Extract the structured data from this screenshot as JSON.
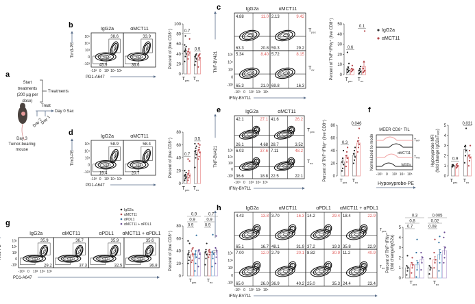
{
  "panel_a": {
    "label": "a",
    "start": [
      "Start",
      "treatments",
      "(200 µg per",
      "dose)"
    ],
    "treatments": "Treatments",
    "treat": "Treat",
    "sac": "Day 0 Sac",
    "day2": "Day 2",
    "day1": "Day 1",
    "mouse": [
      "Day 3",
      "Tumor-bearing",
      "mouse"
    ]
  },
  "axis_ticks": {
    "y": [
      "10⁵",
      "10⁴",
      "10³",
      "0",
      "-10³"
    ],
    "x": [
      "-10³",
      "0",
      "10³",
      "10⁴",
      "10⁵"
    ]
  },
  "flow": [
    {
      "id": "b",
      "label": "b",
      "type": "gate",
      "samples": [
        "IgG2a",
        "αMCT11"
      ],
      "ylabel": "Tim3-PE",
      "xlabel": "PD1-A647",
      "gates": [
        [
          "38.6",
          "45.9"
        ],
        [
          "33.9",
          "36.6"
        ]
      ]
    },
    {
      "id": "d",
      "label": "d",
      "type": "gate",
      "samples": [
        "IgG2a",
        "αMCT11"
      ],
      "ylabel": "Tim3-PE",
      "xlabel": "PD1-A647",
      "gates": [
        [
          "58.9",
          "19.4"
        ],
        [
          "58.4",
          "20.7"
        ]
      ]
    },
    {
      "id": "g",
      "label": "g",
      "type": "gate",
      "samples": [
        "IgG2a",
        "αMCT11",
        "αPDL1",
        "αMCT11 + αPDL1"
      ],
      "ylabel": "Tim3-PE",
      "xlabel": "PD1-A647",
      "gates": [
        [
          "35.9",
          "29.2"
        ],
        [
          "36.7",
          "37.3"
        ],
        [
          "35.9",
          "32.5"
        ],
        [
          "35.6",
          "36.8"
        ]
      ]
    },
    {
      "id": "c",
      "label": "c",
      "type": "quad",
      "samples": [
        "IgG2a",
        "αMCT11"
      ],
      "ylabel": "TNF-BV421",
      "xlabel": "IFNγ-BV711",
      "rows": [
        {
          "name": {
            "t": "T",
            "sub": "pex"
          },
          "quads": [
            [
              "4.88",
              "11.0",
              "63.3",
              "20.8"
            ],
            [
              "2.13",
              "9.42",
              "59.3",
              "29.2"
            ]
          ]
        },
        {
          "name": {
            "t": "T",
            "sub": "ex"
          },
          "quads": [
            [
              "5.34",
              "8.40",
              "65.3",
              "21.0"
            ],
            [
              "5.72",
              "8.15",
              "69.8",
              "16.3"
            ]
          ]
        }
      ]
    },
    {
      "id": "e",
      "label": "e",
      "type": "quad",
      "samples": [
        "IgG2a",
        "αMCT11"
      ],
      "ylabel": "TNF-BV421",
      "xlabel": "IFNγ-BV711",
      "rows": [
        {
          "name": {
            "t": "T",
            "sub": "pex"
          },
          "quads": [
            [
              "42.1",
              "27.1",
              "26.1",
              "4.68"
            ],
            [
              "41.6",
              "26.2",
              "28.7",
              "3.52"
            ]
          ]
        },
        {
          "name": {
            "t": "T",
            "sub": "ex"
          },
          "quads": [
            [
              "6.03",
              "37.6",
              "36.6",
              "18.8"
            ],
            [
              "7.11",
              "48.2",
              "22.5",
              "22.1"
            ]
          ]
        }
      ]
    },
    {
      "id": "h",
      "label": "h",
      "type": "quad",
      "samples": [
        "IgG2a",
        "αMCT11",
        "αPDL1",
        "αMCT11 + αPDL1"
      ],
      "ylabel": "TNF-BV421",
      "xlabel": "IFNγ-BV711",
      "rows": [
        {
          "name": {
            "t": "T",
            "sub": "pex"
          },
          "quads": [
            [
              "4.43",
              "13.8",
              "65.1",
              "16.7"
            ],
            [
              "3.70",
              "16.3",
              "48.1",
              "31.9"
            ],
            [
              "14.2",
              "29.4",
              "37.2",
              "19.3"
            ],
            [
              "18.4",
              "22.9",
              "35.8",
              "22.9"
            ]
          ]
        },
        {
          "name": {
            "t": "T",
            "sub": "ex"
          },
          "quads": [
            [
              "7.00",
              "12.0",
              "65.0",
              "26.0"
            ],
            [
              "2.79",
              "20.1",
              "36.9",
              "40.2"
            ],
            [
              "8.82",
              "30.9",
              "25.0",
              "35.3"
            ],
            [
              "11.2",
              "40.9",
              "24.4",
              "23.4"
            ]
          ]
        }
      ]
    }
  ],
  "histogram_f": {
    "label": "f",
    "title": "MEER CD8⁺ TIL",
    "ylabel": "Normalized to mode",
    "xlabel": "Hypoxyprobe-PE",
    "curve_labels": [
      "Tₑₓₕ",
      "αMCT11",
      "Tₚₑₓ",
      "IgG2a"
    ],
    "colors": {
      "IgG2a": "#222222",
      "αMCT11": "#f2a0a0"
    }
  },
  "legend_c": [
    {
      "name": "IgG2a",
      "color": "#333333"
    },
    {
      "name": "αMCT11",
      "color": "#b5474b"
    }
  ],
  "legend_g": [
    {
      "name": "IgG2a",
      "color": "#111111"
    },
    {
      "name": "αMCT11",
      "color": "#b5474b"
    },
    {
      "name": "αPDL1",
      "color": "#2e6e9e"
    },
    {
      "name": "αMCT11 + αPDL1",
      "color": "#6a4c93"
    }
  ],
  "chart_data": [
    {
      "id": "b",
      "type": "bar",
      "ylabel": [
        "Percent of (live CD8⁺)"
      ],
      "ylim": [
        0,
        100
      ],
      "yticks": [
        "0",
        "20",
        "40",
        "60",
        "80",
        "100"
      ],
      "groups": [
        {
          "t": "T",
          "sub": "pex"
        },
        {
          "t": "T",
          "sub": "ex"
        }
      ],
      "series": [
        {
          "name": "IgG2a",
          "means": [
            47,
            33
          ],
          "sem": [
            5,
            3
          ],
          "points": [
            [
              25,
              35,
              40,
              45,
              48,
              55,
              58,
              76
            ],
            [
              18,
              25,
              30,
              35,
              38,
              40
            ]
          ]
        },
        {
          "name": "αMCT11",
          "means": [
            45,
            33
          ],
          "sem": [
            5,
            4
          ],
          "points": [
            [
              30,
              38,
              42,
              45,
              50,
              70
            ],
            [
              14,
              28,
              32,
              36,
              38,
              40
            ]
          ]
        }
      ],
      "pvalues": [
        [
          "0.7"
        ],
        [
          "0.9"
        ]
      ]
    },
    {
      "id": "d",
      "type": "bar",
      "ylabel": [
        "Percent of (live CD8⁺)"
      ],
      "ylim": [
        0,
        80
      ],
      "yticks": [
        "0",
        "20",
        "40",
        "60",
        "80"
      ],
      "groups": [
        {
          "t": "T",
          "sub": "pex"
        },
        {
          "t": "T",
          "sub": "ex"
        }
      ],
      "series": [
        {
          "name": "IgG2a",
          "means": [
            12,
            48
          ],
          "sem": [
            2,
            4
          ],
          "points": [
            [
              5,
              8,
              10,
              12,
              14,
              17,
              20
            ],
            [
              25,
              40,
              45,
              50,
              55,
              58,
              62
            ]
          ]
        },
        {
          "name": "αMCT11",
          "means": [
            15,
            50
          ],
          "sem": [
            3,
            3
          ],
          "points": [
            [
              5,
              9,
              12,
              15,
              20,
              35,
              38
            ],
            [
              38,
              42,
              48,
              52,
              56,
              60,
              62
            ]
          ]
        }
      ],
      "pvalues": [
        [
          "0.7"
        ],
        [
          "0.5"
        ]
      ]
    },
    {
      "id": "g",
      "type": "bar",
      "ylabel": [
        "Percent of (live CD8⁺)"
      ],
      "ylim": [
        0,
        80
      ],
      "yticks": [
        "0",
        "20",
        "40",
        "60",
        "80"
      ],
      "groups": [
        {
          "t": "T",
          "sub": "pex"
        },
        {
          "t": "T",
          "sub": "ex"
        }
      ],
      "series": [
        {
          "name": "IgG2a",
          "means": [
            34,
            36
          ],
          "sem": [
            4,
            3
          ],
          "points": [
            [
              20,
              25,
              30,
              35,
              40,
              52,
              56
            ],
            [
              18,
              28,
              34,
              38,
              42,
              52
            ]
          ]
        },
        {
          "name": "αMCT11",
          "means": [
            34,
            38
          ],
          "sem": [
            3,
            2
          ],
          "points": [
            [
              22,
              25,
              35,
              40,
              43,
              45
            ],
            [
              30,
              34,
              38,
              40,
              42
            ]
          ]
        },
        {
          "name": "αPDL1",
          "means": [
            34,
            35
          ],
          "sem": [
            6,
            5
          ],
          "points": [
            [
              8,
              20,
              30,
              35,
              40,
              65
            ],
            [
              15,
              28,
              35,
              38,
              66
            ]
          ]
        },
        {
          "name": "αMCT11 + αPDL1",
          "means": [
            38,
            38
          ],
          "sem": [
            4,
            5
          ],
          "points": [
            [
              15,
              28,
              35,
              40,
              41
            ],
            [
              20,
              30,
              40,
              45,
              64
            ]
          ]
        }
      ],
      "pvalues": [
        [
          "0.9",
          "0.9",
          "0.9"
        ],
        [
          "0.7",
          "0.9",
          "0.9"
        ]
      ]
    },
    {
      "id": "c",
      "type": "bar",
      "ylabel": [
        "Percent of TNF⁺IFNγ⁺ (live CD8⁺)"
      ],
      "ylim": [
        0,
        50
      ],
      "yticks": [
        "0",
        "10",
        "20",
        "30",
        "40",
        "50"
      ],
      "groups": [
        {
          "t": "T",
          "sub": "pex"
        },
        {
          "t": "T",
          "sub": "ex"
        }
      ],
      "series": [
        {
          "name": "IgG2a",
          "means": [
            6,
            4
          ],
          "sem": [
            2,
            1
          ],
          "points": [
            [
              2,
              3,
              4,
              5,
              7,
              11,
              22
            ],
            [
              1,
              2,
              3,
              4,
              6,
              8
            ]
          ]
        },
        {
          "name": "αMCT11",
          "means": [
            5,
            8
          ],
          "sem": [
            1,
            4
          ],
          "points": [
            [
              3,
              4,
              5,
              6,
              9
            ],
            [
              2,
              3,
              4,
              6,
              13,
              43
            ]
          ]
        }
      ],
      "pvalues": [
        [
          "0.6"
        ],
        [
          "0.1"
        ]
      ]
    },
    {
      "id": "e",
      "type": "bar",
      "ylabel": [
        "Percent of TNF⁺IFNγ⁺ (live CD8⁺)"
      ],
      "ylim": [
        0,
        80
      ],
      "yticks": [
        "0",
        "20",
        "40",
        "60",
        "80"
      ],
      "groups": [
        {
          "t": "T",
          "sub": "pex"
        },
        {
          "t": "T",
          "sub": "ex"
        }
      ],
      "series": [
        {
          "name": "IgG2a",
          "means": [
            22,
            33
          ],
          "sem": [
            3,
            3
          ],
          "points": [
            [
              8,
              12,
              18,
              22,
              28,
              40
            ],
            [
              20,
              25,
              30,
              35,
              40,
              45
            ]
          ]
        },
        {
          "name": "αMCT11",
          "means": [
            30,
            52
          ],
          "sem": [
            3,
            4
          ],
          "points": [
            [
              15,
              22,
              28,
              32,
              38,
              45
            ],
            [
              38,
              45,
              50,
              55,
              60,
              75
            ]
          ]
        }
      ],
      "pvalues": [
        [
          "0.3"
        ],
        [
          "0.046"
        ]
      ]
    },
    {
      "id": "f",
      "type": "bar",
      "ylabel": [
        "Hypoxyprobe MFI",
        "(fold change IgG2aTₚₑₓ)"
      ],
      "ylim": [
        0,
        5
      ],
      "yticks": [
        "0",
        "1",
        "2",
        "3",
        "4",
        "5"
      ],
      "groups": [
        {
          "t": "T",
          "sub": "pex"
        },
        {
          "t": "T",
          "sub": "ex"
        }
      ],
      "series": [
        {
          "name": "IgG2a",
          "means": [
            1.0,
            2.6
          ],
          "sem": [
            0.05,
            0.3
          ],
          "points": [
            [
              0.9,
              1.0,
              1.0,
              1.1,
              1.1
            ],
            [
              1.3,
              2.0,
              2.5,
              2.9,
              3.0,
              4.7
            ]
          ]
        },
        {
          "name": "αMCT11",
          "means": [
            1.0,
            1.9
          ],
          "sem": [
            0.05,
            0.2
          ],
          "points": [
            [
              0.8,
              0.9,
              1.0,
              1.1,
              1.2
            ],
            [
              1.0,
              1.5,
              1.8,
              2.0,
              2.5,
              3.0
            ]
          ]
        }
      ],
      "pvalues": [
        [
          "0.9"
        ],
        [
          "0.031"
        ]
      ]
    },
    {
      "id": "h",
      "type": "bar",
      "ylabel": [
        "Percent of TNF⁺IFNγ⁺",
        "(fold change/IgG2a)"
      ],
      "ylim": [
        0,
        5
      ],
      "yticks": [
        "0",
        "1",
        "2",
        "3",
        "4",
        "5"
      ],
      "groups": [
        {
          "t": "T",
          "sub": "pex"
        },
        {
          "t": "T",
          "sub": "ex"
        }
      ],
      "series": [
        {
          "name": "IgG2a",
          "means": [
            1.0,
            1.0
          ],
          "sem": [
            0.15,
            0.15
          ],
          "points": [
            [
              0.3,
              0.7,
              1.0,
              1.2,
              2.2
            ],
            [
              0.4,
              0.8,
              1.0,
              1.2,
              1.9
            ]
          ]
        },
        {
          "name": "αMCT11",
          "means": [
            1.3,
            1.8
          ],
          "sem": [
            0.2,
            0.3
          ],
          "points": [
            [
              0.5,
              1.0,
              1.3,
              1.5,
              2.0
            ],
            [
              1.0,
              1.5,
              1.8,
              2.5,
              3.8
            ]
          ]
        },
        {
          "name": "αPDL1",
          "means": [
            1.3,
            2.3
          ],
          "sem": [
            0.4,
            0.5
          ],
          "points": [
            [
              0.1,
              0.8,
              1.5,
              2.5,
              3.8
            ],
            [
              0.7,
              1.5,
              2.5,
              3.5,
              4.1
            ]
          ]
        },
        {
          "name": "αMCT11 + αPDL1",
          "means": [
            1.8,
            2.7
          ],
          "sem": [
            0.3,
            0.4
          ],
          "points": [
            [
              0.8,
              1.5,
              2.0,
              2.5
            ],
            [
              1.5,
              2.0,
              3.0,
              4.0,
              4.5
            ]
          ]
        }
      ],
      "pvalues": [
        [
          "0.3",
          "0.8",
          "0.7"
        ],
        [
          "0.005",
          "0.02",
          "0.08"
        ]
      ]
    }
  ],
  "colors": {
    "axis_arrow": "#5a6e8a",
    "quad_highlight": "#e0605e",
    "series_points": [
      "#222222",
      "#b5474b",
      "#2e6e9e",
      "#6a4c93"
    ],
    "series_bars": [
      "#999999",
      "#ec9b9b",
      "#9cc3e0",
      "#c6b4dc"
    ]
  }
}
